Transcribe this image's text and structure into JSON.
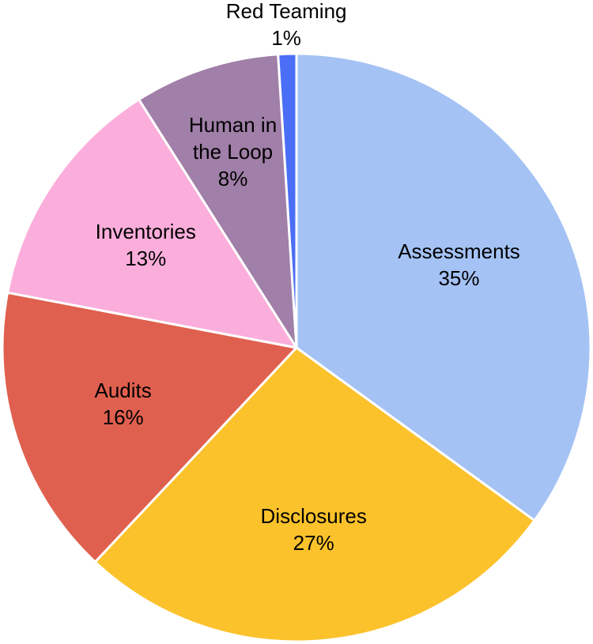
{
  "chart_data": {
    "type": "pie",
    "categories": [
      "Assessments",
      "Disclosures",
      "Audits",
      "Inventories",
      "Human in the Loop",
      "Red Teaming"
    ],
    "values": [
      35,
      27,
      16,
      13,
      8,
      1
    ],
    "value_labels": [
      "35%",
      "27%",
      "16%",
      "13%",
      "8%",
      "1%"
    ],
    "colors": [
      "#a4c2f4",
      "#fcc22c",
      "#e0604f",
      "#fbaedb",
      "#a07fa8",
      "#4a6ef5"
    ]
  }
}
